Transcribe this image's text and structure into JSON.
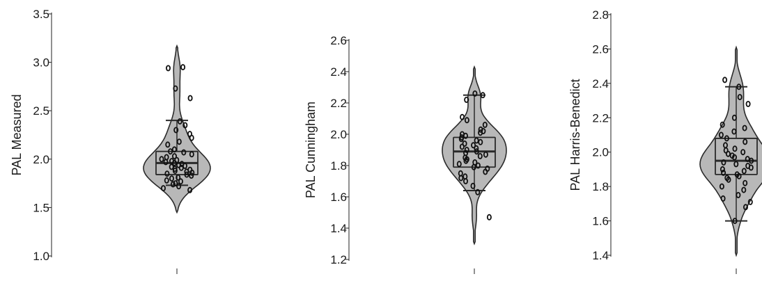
{
  "chart_data": [
    {
      "type": "violin",
      "ylabel": "PAL Measured",
      "ylim": [
        1.0,
        3.5
      ],
      "yticks": [
        "1.0",
        "1.5",
        "2.0",
        "2.5",
        "3.0",
        "3.5"
      ],
      "violin": {
        "min": 1.45,
        "max": 3.17
      },
      "box": {
        "q1": 1.84,
        "median": 1.96,
        "q3": 2.08,
        "whisker_low": 1.73,
        "whisker_high": 2.4
      },
      "points": [
        1.68,
        1.7,
        1.72,
        1.74,
        1.75,
        1.77,
        1.78,
        1.8,
        1.81,
        1.83,
        1.84,
        1.85,
        1.86,
        1.87,
        1.88,
        1.89,
        1.9,
        1.91,
        1.92,
        1.93,
        1.94,
        1.95,
        1.96,
        1.97,
        1.98,
        1.99,
        2.0,
        2.02,
        2.03,
        2.05,
        2.07,
        2.08,
        2.1,
        2.15,
        2.18,
        2.22,
        2.26,
        2.3,
        2.35,
        2.39,
        2.63,
        2.73,
        2.94,
        2.95
      ]
    },
    {
      "type": "violin",
      "ylabel": "PAL Cunningham",
      "ylim": [
        1.2,
        2.6
      ],
      "yticks": [
        "1.2",
        "1.4",
        "1.6",
        "1.8",
        "2.0",
        "2.2",
        "2.4",
        "2.6"
      ],
      "violin": {
        "min": 1.3,
        "max": 2.43
      },
      "box": {
        "q1": 1.79,
        "median": 1.89,
        "q3": 1.98,
        "whisker_low": 1.64,
        "whisker_high": 2.25
      },
      "points": [
        1.47,
        1.63,
        1.67,
        1.7,
        1.72,
        1.73,
        1.75,
        1.76,
        1.78,
        1.79,
        1.8,
        1.81,
        1.82,
        1.83,
        1.84,
        1.85,
        1.86,
        1.87,
        1.88,
        1.89,
        1.9,
        1.91,
        1.92,
        1.93,
        1.94,
        1.95,
        1.96,
        1.97,
        1.98,
        1.99,
        2.0,
        2.01,
        2.02,
        2.03,
        2.06,
        2.09,
        2.11,
        2.22,
        2.25,
        2.26
      ]
    },
    {
      "type": "violin",
      "ylabel": "PAL Harris-Benedict",
      "ylim": [
        1.4,
        2.8
      ],
      "yticks": [
        "1.4",
        "1.6",
        "1.8",
        "2.0",
        "2.2",
        "2.4",
        "2.6",
        "2.8"
      ],
      "violin": {
        "min": 1.4,
        "max": 2.61
      },
      "box": {
        "q1": 1.87,
        "median": 1.95,
        "q3": 2.08,
        "whisker_low": 1.6,
        "whisker_high": 2.38
      },
      "points": [
        1.6,
        1.68,
        1.71,
        1.73,
        1.75,
        1.78,
        1.8,
        1.82,
        1.84,
        1.85,
        1.86,
        1.87,
        1.88,
        1.89,
        1.9,
        1.91,
        1.92,
        1.93,
        1.94,
        1.95,
        1.96,
        1.97,
        1.98,
        1.99,
        2.0,
        2.01,
        2.02,
        2.04,
        2.06,
        2.08,
        2.1,
        2.12,
        2.14,
        2.16,
        2.2,
        2.28,
        2.32,
        2.38,
        2.42
      ]
    }
  ],
  "colors": {
    "violin_fill": "#b8b8b8",
    "stroke": "#2a2a2a",
    "point_stroke": "#111111"
  }
}
